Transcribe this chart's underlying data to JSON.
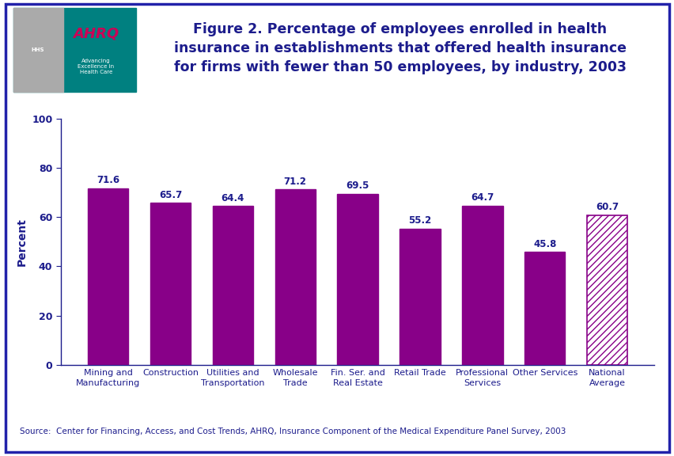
{
  "categories": [
    "Mining and\nManufacturing",
    "Construction",
    "Utilities and\nTransportation",
    "Wholesale\nTrade",
    "Fin. Ser. and\nReal Estate",
    "Retail Trade",
    "Professional\nServices",
    "Other Services",
    "National\nAverage"
  ],
  "values": [
    71.6,
    65.7,
    64.4,
    71.2,
    69.5,
    55.2,
    64.7,
    45.8,
    60.7
  ],
  "bar_color": "#880088",
  "national_avg_hatch": "////",
  "national_avg_facecolor": "#ffffff",
  "national_avg_edgecolor": "#880088",
  "title_line1": "Figure 2. Percentage of employees enrolled in health",
  "title_line2": "insurance in establishments that offered health insurance",
  "title_line3": "for firms with fewer than 50 employees, by industry, 2003",
  "ylabel": "Percent",
  "ylim": [
    0,
    100
  ],
  "yticks": [
    0,
    20,
    40,
    60,
    80,
    100
  ],
  "source_text": "Source:  Center for Financing, Access, and Cost Trends, AHRQ, Insurance Component of the Medical Expenditure Panel Survey, 2003",
  "title_color": "#1c1c8c",
  "axis_color": "#1c1c8c",
  "outer_border_color": "#2222aa",
  "title_fontsize": 12.5,
  "label_fontsize": 8,
  "value_fontsize": 8.5,
  "ylabel_fontsize": 10,
  "source_fontsize": 7.5,
  "ytick_fontsize": 9,
  "header_bg": "#ffffff",
  "teal_color": "#008080",
  "gray_color": "#aaaaaa",
  "ahrq_red": "#cc0055",
  "ahrq_blue": "#1c1c8c",
  "sep_line_color": "#2222aa",
  "sep_line2_color": "#008080"
}
